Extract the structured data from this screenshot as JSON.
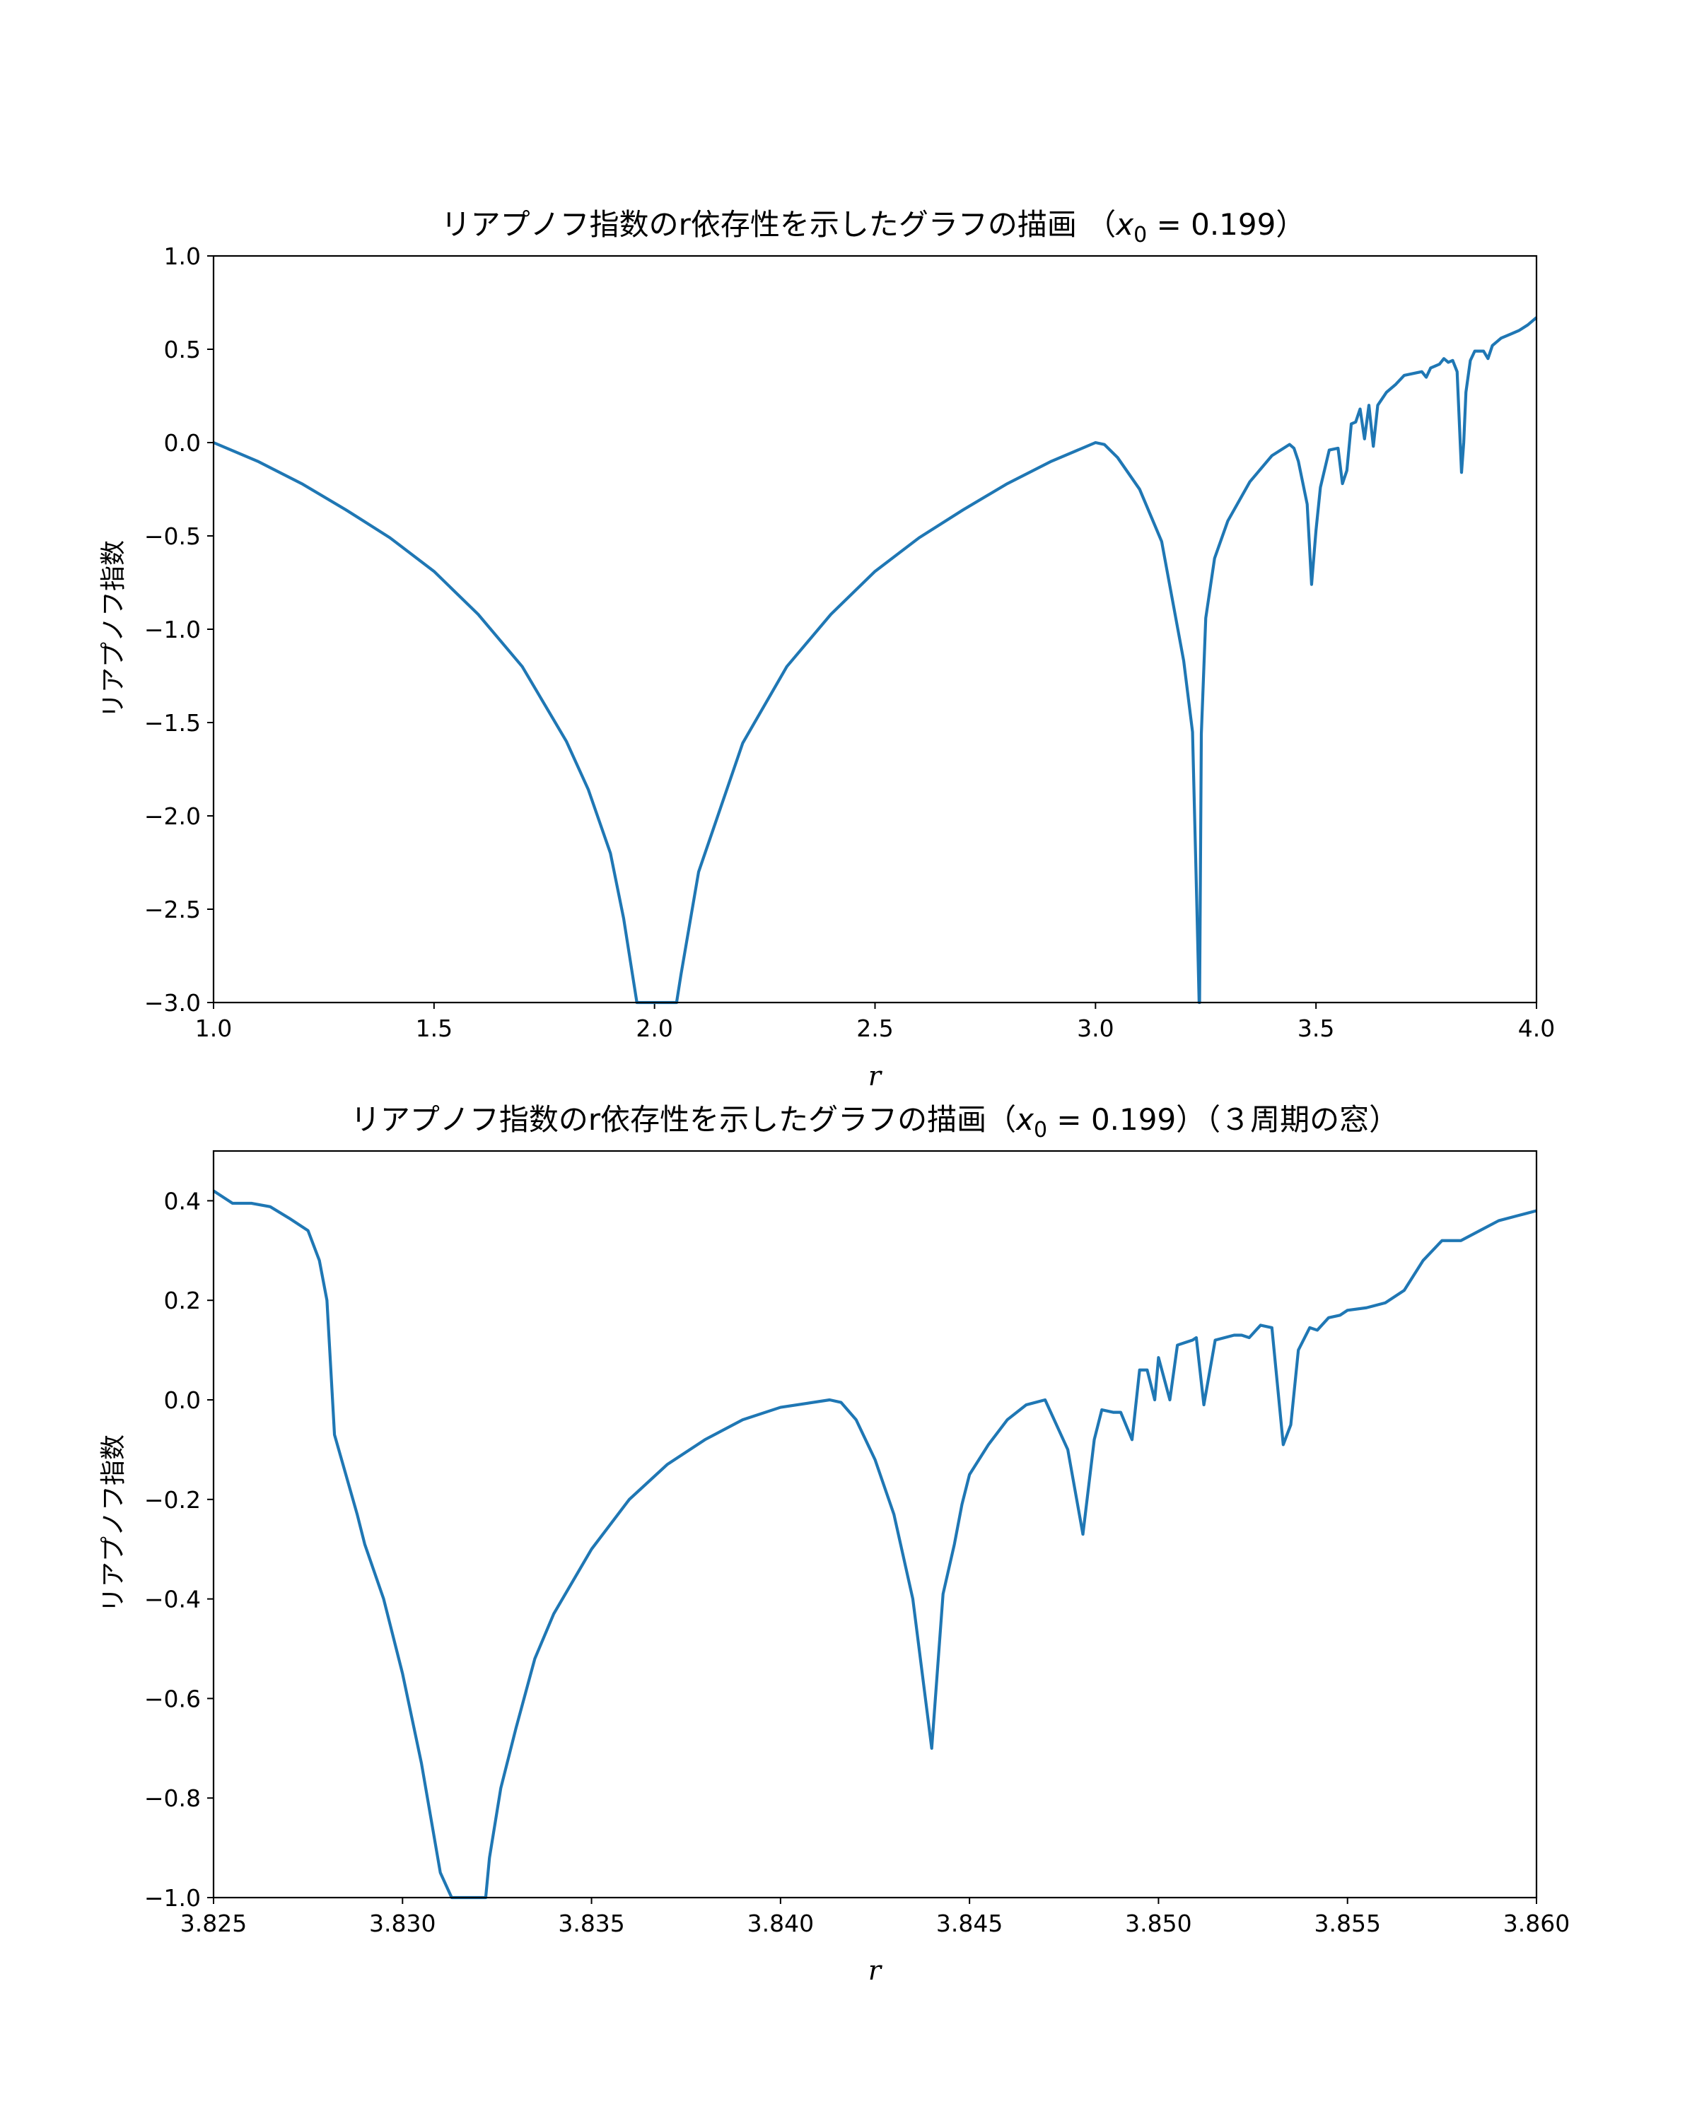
{
  "chart_data": [
    {
      "type": "line",
      "title": "リアプノフ指数のr依存性を示したグラフの描画 （",
      "title_var": "x",
      "title_sub": "0",
      "title_tail": " = 0.199）",
      "xlabel": "r",
      "ylabel": "リアプノフ指数",
      "xlim": [
        1.0,
        4.0
      ],
      "ylim": [
        -3.0,
        1.0
      ],
      "xticks": [
        "1.0",
        "1.5",
        "2.0",
        "2.5",
        "3.0",
        "3.5",
        "4.0"
      ],
      "yticks": [
        "1.0",
        "0.5",
        "0.0",
        "-0.5",
        "-1.0",
        "-1.5",
        "-2.0",
        "-2.5",
        "-3.0"
      ],
      "grid": false,
      "series": [
        {
          "color": "#1f77b4",
          "x": [
            1.0,
            1.1,
            1.2,
            1.3,
            1.4,
            1.5,
            1.6,
            1.7,
            1.8,
            1.85,
            1.9,
            1.93,
            1.95,
            1.96,
            2.05,
            2.06,
            2.1,
            2.2,
            2.3,
            2.4,
            2.5,
            2.6,
            2.7,
            2.8,
            2.9,
            3.0,
            3.02,
            3.05,
            3.1,
            3.15,
            3.2,
            3.22,
            3.23,
            3.235,
            3.236,
            3.24,
            3.25,
            3.27,
            3.3,
            3.35,
            3.4,
            3.44,
            3.45,
            3.46,
            3.48,
            3.49,
            3.5,
            3.51,
            3.53,
            3.55,
            3.56,
            3.57,
            3.58,
            3.59,
            3.6,
            3.61,
            3.62,
            3.63,
            3.64,
            3.66,
            3.68,
            3.7,
            3.72,
            3.74,
            3.75,
            3.76,
            3.78,
            3.79,
            3.8,
            3.81,
            3.82,
            3.83,
            3.835,
            3.84,
            3.85,
            3.86,
            3.88,
            3.89,
            3.9,
            3.91,
            3.92,
            3.94,
            3.96,
            3.98,
            4.0
          ],
          "y": [
            0.0,
            -0.1,
            -0.22,
            -0.36,
            -0.51,
            -0.69,
            -0.92,
            -1.2,
            -1.6,
            -1.86,
            -2.2,
            -2.55,
            -2.85,
            -3.0,
            -3.0,
            -2.85,
            -2.3,
            -1.61,
            -1.2,
            -0.92,
            -0.69,
            -0.51,
            -0.36,
            -0.22,
            -0.1,
            0.0,
            -0.01,
            -0.08,
            -0.25,
            -0.53,
            -1.17,
            -1.55,
            -2.5,
            -3.0,
            -3.0,
            -1.56,
            -0.94,
            -0.62,
            -0.42,
            -0.21,
            -0.07,
            -0.01,
            -0.03,
            -0.1,
            -0.33,
            -0.76,
            -0.47,
            -0.24,
            -0.04,
            -0.03,
            -0.22,
            -0.15,
            0.1,
            0.11,
            0.18,
            0.02,
            0.2,
            -0.02,
            0.2,
            0.27,
            0.31,
            0.36,
            0.37,
            0.38,
            0.35,
            0.4,
            0.42,
            0.45,
            0.43,
            0.44,
            0.38,
            -0.16,
            0.0,
            0.27,
            0.44,
            0.49,
            0.49,
            0.45,
            0.52,
            0.54,
            0.56,
            0.58,
            0.6,
            0.63,
            0.67
          ]
        }
      ]
    },
    {
      "type": "line",
      "title": "リアプノフ指数のr依存性を示したグラフの描画（",
      "title_var": "x",
      "title_sub": "0",
      "title_tail": " = 0.199）（３周期の窓）",
      "xlabel": "r",
      "ylabel": "リアプノフ指数",
      "xlim": [
        3.825,
        3.86
      ],
      "ylim": [
        -1.0,
        0.5
      ],
      "xticks": [
        "3.825",
        "3.830",
        "3.835",
        "3.840",
        "3.845",
        "3.850",
        "3.855",
        "3.860"
      ],
      "yticks": [
        "0.4",
        "0.2",
        "0.0",
        "-0.2",
        "-0.4",
        "-0.6",
        "-0.8",
        "-1.0"
      ],
      "grid": false,
      "series": [
        {
          "color": "#1f77b4",
          "x": [
            3.825,
            3.8255,
            3.826,
            3.8265,
            3.827,
            3.8275,
            3.8278,
            3.828,
            3.8282,
            3.8285,
            3.8288,
            3.829,
            3.8295,
            3.83,
            3.8305,
            3.831,
            3.8313,
            3.8315,
            3.8316,
            3.8322,
            3.8323,
            3.8326,
            3.833,
            3.8335,
            3.834,
            3.835,
            3.836,
            3.837,
            3.838,
            3.839,
            3.84,
            3.8413,
            3.8416,
            3.842,
            3.8425,
            3.843,
            3.8435,
            3.844,
            3.8443,
            3.8446,
            3.8448,
            3.845,
            3.8455,
            3.846,
            3.8465,
            3.847,
            3.8476,
            3.848,
            3.8483,
            3.8485,
            3.8488,
            3.849,
            3.8493,
            3.8495,
            3.8497,
            3.8499,
            3.85,
            3.8503,
            3.8505,
            3.8507,
            3.8509,
            3.851,
            3.8512,
            3.8515,
            3.852,
            3.8522,
            3.8524,
            3.8527,
            3.853,
            3.8533,
            3.8535,
            3.8537,
            3.854,
            3.8542,
            3.8545,
            3.8548,
            3.855,
            3.8555,
            3.856,
            3.8565,
            3.857,
            3.8575,
            3.858,
            3.8585,
            3.859,
            3.8595,
            3.86
          ],
          "y": [
            0.42,
            0.395,
            0.395,
            0.388,
            0.365,
            0.34,
            0.28,
            0.2,
            -0.07,
            -0.15,
            -0.23,
            -0.29,
            -0.4,
            -0.55,
            -0.73,
            -0.95,
            -1.0,
            -1.0,
            -1.0,
            -1.0,
            -0.92,
            -0.78,
            -0.66,
            -0.52,
            -0.43,
            -0.3,
            -0.2,
            -0.13,
            -0.08,
            -0.04,
            -0.015,
            0.0,
            -0.005,
            -0.04,
            -0.12,
            -0.23,
            -0.4,
            -0.7,
            -0.39,
            -0.29,
            -0.21,
            -0.15,
            -0.09,
            -0.04,
            -0.01,
            0.0,
            -0.1,
            -0.27,
            -0.08,
            -0.02,
            -0.025,
            -0.025,
            -0.08,
            0.06,
            0.06,
            0.0,
            0.085,
            0.0,
            0.11,
            0.115,
            0.12,
            0.125,
            -0.01,
            0.12,
            0.13,
            0.13,
            0.125,
            0.15,
            0.145,
            -0.09,
            -0.05,
            0.1,
            0.145,
            0.14,
            0.165,
            0.17,
            0.18,
            0.185,
            0.195,
            0.22,
            0.28,
            0.32,
            0.32,
            0.34,
            0.36,
            0.37,
            0.38
          ]
        }
      ]
    }
  ]
}
